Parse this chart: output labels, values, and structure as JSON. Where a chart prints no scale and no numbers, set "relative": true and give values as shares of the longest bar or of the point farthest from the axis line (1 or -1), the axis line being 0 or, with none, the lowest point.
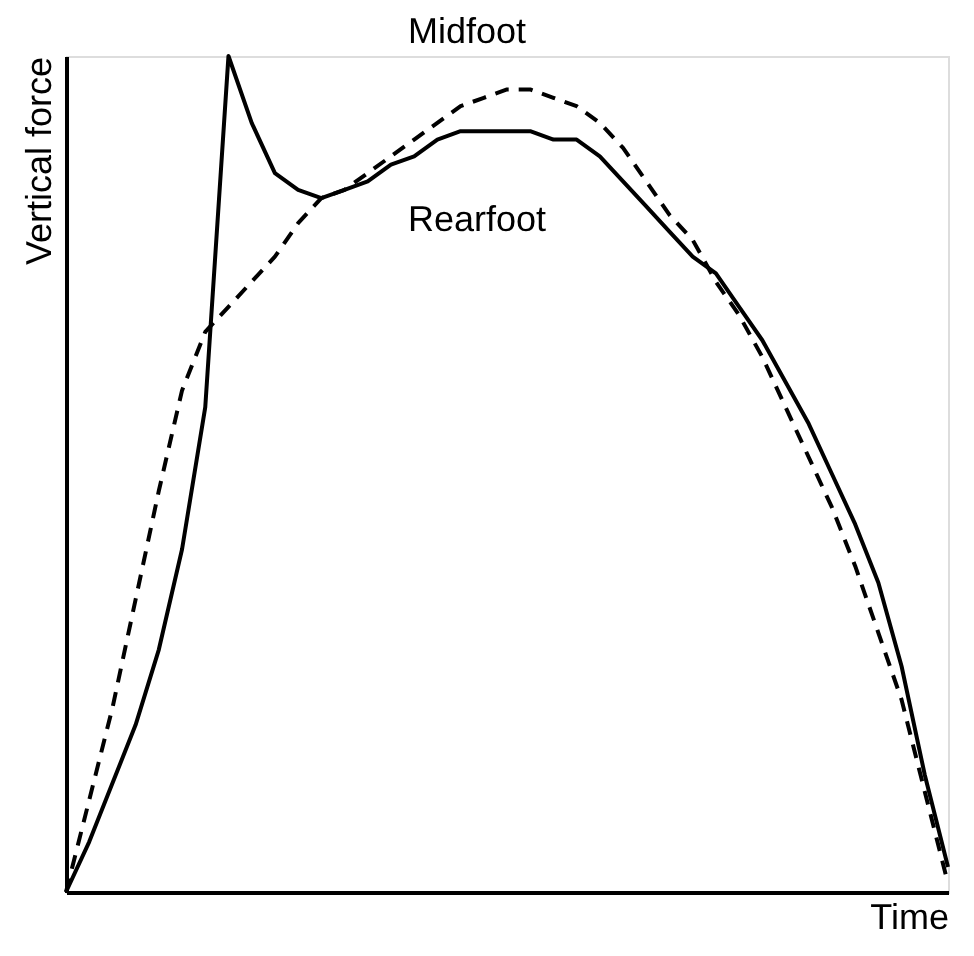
{
  "chart_data": {
    "type": "line",
    "relative": true,
    "xlabel": "Time",
    "ylabel": "Vertical force",
    "marker": "none",
    "categories": [
      null,
      null,
      null,
      null,
      null,
      null,
      null,
      null,
      null,
      null,
      null,
      null,
      null,
      null,
      null,
      null,
      null,
      null,
      null,
      null,
      null,
      null,
      null,
      null,
      null,
      null,
      null,
      null,
      null,
      null,
      null,
      null,
      null,
      null,
      null,
      null,
      null,
      null,
      null
    ],
    "series": [
      {
        "name": "Midfoot",
        "color": "#000000",
        "line_style": "dashed",
        "values": [
          0,
          0.11,
          0.22,
          0.35,
          0.48,
          0.6,
          0.67,
          0.7,
          0.73,
          0.76,
          0.8,
          0.83,
          0.84,
          0.86,
          0.88,
          0.9,
          0.92,
          0.94,
          0.95,
          0.96,
          0.96,
          0.95,
          0.94,
          0.92,
          0.89,
          0.85,
          0.81,
          0.78,
          0.73,
          0.69,
          0.64,
          0.58,
          0.52,
          0.46,
          0.39,
          0.31,
          0.23,
          0.12,
          0.01
        ]
      },
      {
        "name": "Rearfoot",
        "color": "#000000",
        "line_style": "solid",
        "values": [
          0,
          0.06,
          0.13,
          0.2,
          0.29,
          0.41,
          0.58,
          1,
          0.92,
          0.86,
          0.84,
          0.83,
          0.84,
          0.85,
          0.87,
          0.88,
          0.9,
          0.91,
          0.91,
          0.91,
          0.91,
          0.9,
          0.9,
          0.88,
          0.85,
          0.82,
          0.79,
          0.76,
          0.74,
          0.7,
          0.66,
          0.61,
          0.56,
          0.5,
          0.44,
          0.37,
          0.27,
          0.14,
          0.03
        ]
      }
    ]
  }
}
